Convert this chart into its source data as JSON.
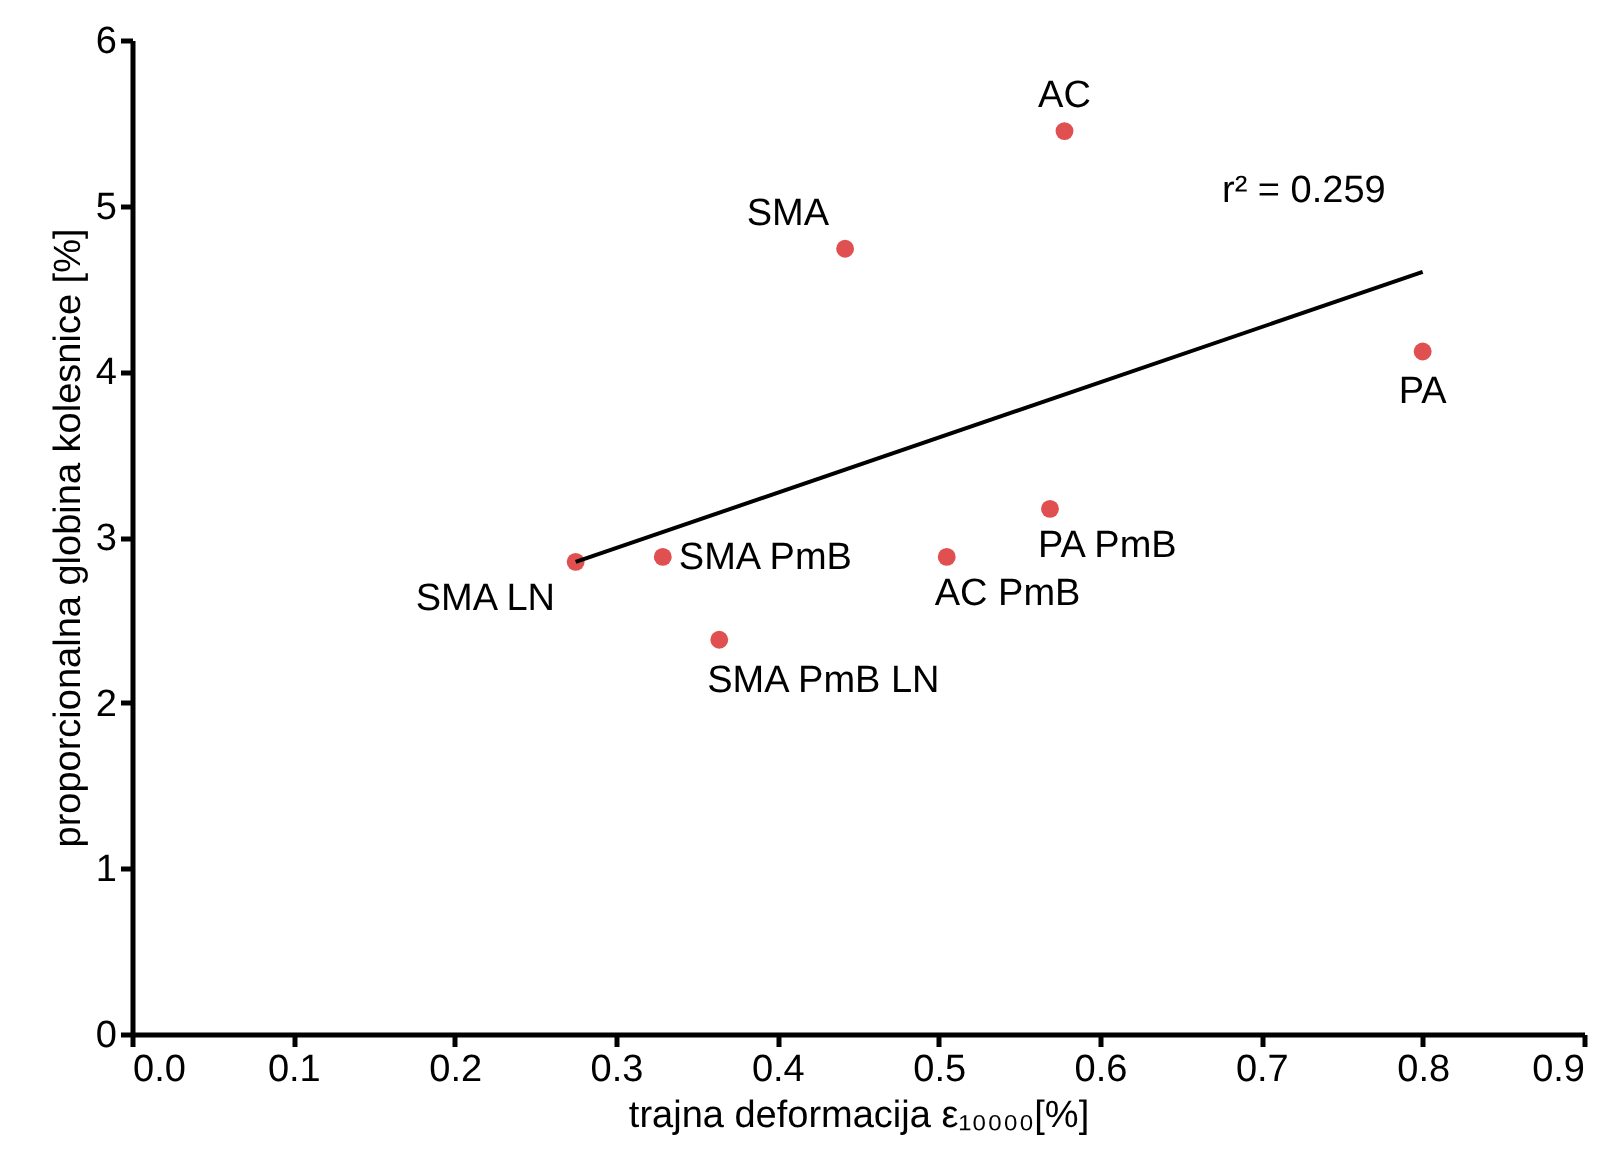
{
  "chart_data": {
    "type": "scatter",
    "xlabel": "trajna deformacija ε₁₀₀₀₀[%]",
    "ylabel": "proporcionalna globina kolesnice [%]",
    "xlim": [
      0,
      0.9
    ],
    "xticks": [
      {
        "value": 0,
        "label": "0.0"
      },
      0.1,
      0.2,
      0.3,
      0.4,
      0.5,
      0.6,
      0.7,
      0.8,
      0.9
    ],
    "ylim": [
      0,
      6
    ],
    "yticks": [
      0,
      1,
      2,
      3,
      4,
      5,
      6
    ],
    "grid": false,
    "marker": "circle",
    "series": [
      {
        "color": "#e05050",
        "x": [
          0.578,
          0.442,
          0.8,
          0.569,
          0.505,
          0.329,
          0.275,
          0.364
        ],
        "values": [
          5.45,
          4.74,
          4.12,
          3.17,
          2.88,
          2.88,
          2.85,
          2.38
        ]
      },
      {
        "type": "line",
        "marker": "none",
        "color": "#000000",
        "x": [
          0.275,
          0.8
        ],
        "values": [
          2.85,
          4.6
        ]
      }
    ],
    "annotations": [
      {
        "text": "AC",
        "x": 0.578,
        "y": 5.45
      },
      {
        "text": "SMA",
        "x": 0.442,
        "y": 4.74
      },
      {
        "text": "PA",
        "x": 0.8,
        "y": 4.12
      },
      {
        "text": "PA PmB",
        "x": 0.569,
        "y": 3.17
      },
      {
        "text": "AC PmB",
        "x": 0.505,
        "y": 2.88
      },
      {
        "text": "SMA PmB",
        "x": 0.329,
        "y": 2.88
      },
      {
        "text": "SMA LN",
        "x": 0.275,
        "y": 2.85
      },
      {
        "text": "SMA PmB LN",
        "x": 0.364,
        "y": 2.38
      },
      "r² = 0.259"
    ]
  }
}
